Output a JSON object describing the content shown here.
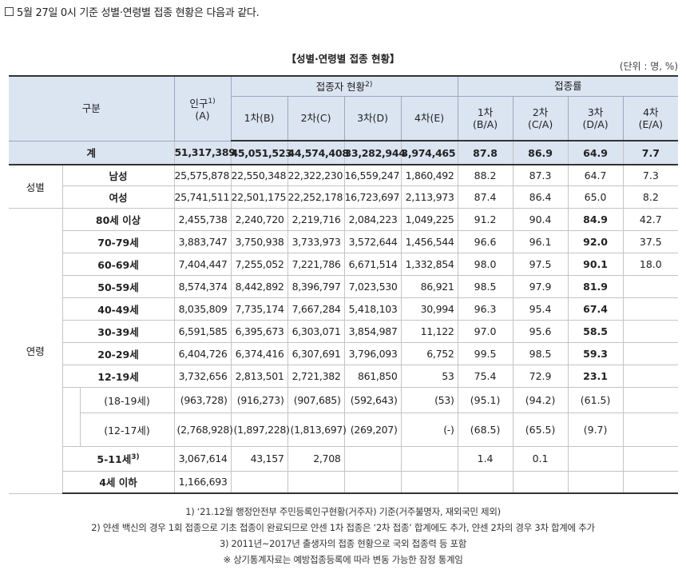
{
  "intro": "5월 27일 0시 기준 성별·연령별 접종 현황은 다음과 같다.",
  "title": "【성별·연령별 접종 현황】",
  "unit": "(단위 : 명, %)",
  "header": {
    "category": "구분",
    "population": "인구",
    "population_sup": "1)",
    "population_sub": "(A)",
    "vaccinated_group": "접종자 현황",
    "vaccinated_group_sup": "2)",
    "rate_group": "접종률",
    "dose1": "1차(B)",
    "dose2": "2차(C)",
    "dose3": "3차(D)",
    "dose4": "4차(E)",
    "rate1": "1차",
    "rate1_sub": "(B/A)",
    "rate2": "2차",
    "rate2_sub": "(C/A)",
    "rate3": "3차",
    "rate3_sub": "(D/A)",
    "rate4": "4차",
    "rate4_sub": "(E/A)"
  },
  "total": {
    "label": "계",
    "pop": "51,317,389",
    "d1": "45,051,523",
    "d2": "44,574,408",
    "d3": "33,282,944",
    "d4": "3,974,465",
    "r1": "87.8",
    "r2": "86.9",
    "r3": "64.9",
    "r4": "7.7"
  },
  "gender": {
    "label": "성별",
    "rows": [
      {
        "label": "남성",
        "pop": "25,575,878",
        "d1": "22,550,348",
        "d2": "22,322,230",
        "d3": "16,559,247",
        "d4": "1,860,492",
        "r1": "88.2",
        "r2": "87.3",
        "r3": "64.7",
        "r4": "7.3"
      },
      {
        "label": "여성",
        "pop": "25,741,511",
        "d1": "22,501,175",
        "d2": "22,252,178",
        "d3": "16,723,697",
        "d4": "2,113,973",
        "r1": "87.4",
        "r2": "86.4",
        "r3": "65.0",
        "r4": "8.2"
      }
    ]
  },
  "age": {
    "label": "연령",
    "rows": [
      {
        "label": "80세 이상",
        "pop": "2,455,738",
        "d1": "2,240,720",
        "d2": "2,219,716",
        "d3": "2,084,223",
        "d4": "1,049,225",
        "r1": "91.2",
        "r2": "90.4",
        "r3": "84.9",
        "r4": "42.7"
      },
      {
        "label": "70-79세",
        "pop": "3,883,747",
        "d1": "3,750,938",
        "d2": "3,733,973",
        "d3": "3,572,644",
        "d4": "1,456,544",
        "r1": "96.6",
        "r2": "96.1",
        "r3": "92.0",
        "r4": "37.5"
      },
      {
        "label": "60-69세",
        "pop": "7,404,447",
        "d1": "7,255,052",
        "d2": "7,221,786",
        "d3": "6,671,514",
        "d4": "1,332,854",
        "r1": "98.0",
        "r2": "97.5",
        "r3": "90.1",
        "r4": "18.0"
      },
      {
        "label": "50-59세",
        "pop": "8,574,374",
        "d1": "8,442,892",
        "d2": "8,396,797",
        "d3": "7,023,530",
        "d4": "86,921",
        "r1": "98.5",
        "r2": "97.9",
        "r3": "81.9",
        "r4": ""
      },
      {
        "label": "40-49세",
        "pop": "8,035,809",
        "d1": "7,735,174",
        "d2": "7,667,284",
        "d3": "5,418,103",
        "d4": "30,994",
        "r1": "96.3",
        "r2": "95.4",
        "r3": "67.4",
        "r4": ""
      },
      {
        "label": "30-39세",
        "pop": "6,591,585",
        "d1": "6,395,673",
        "d2": "6,303,071",
        "d3": "3,854,987",
        "d4": "11,122",
        "r1": "97.0",
        "r2": "95.6",
        "r3": "58.5",
        "r4": ""
      },
      {
        "label": "20-29세",
        "pop": "6,404,726",
        "d1": "6,374,416",
        "d2": "6,307,691",
        "d3": "3,796,093",
        "d4": "6,752",
        "r1": "99.5",
        "r2": "98.5",
        "r3": "59.3",
        "r4": ""
      },
      {
        "label": "12-19세",
        "pop": "3,732,656",
        "d1": "2,813,501",
        "d2": "2,721,382",
        "d3": "861,850",
        "d4": "53",
        "r1": "75.4",
        "r2": "72.9",
        "r3": "23.1",
        "r4": ""
      }
    ],
    "sub": [
      {
        "label": "(18-19세)",
        "pop": "(963,728)",
        "d1": "(916,273)",
        "d2": "(907,685)",
        "d3": "(592,643)",
        "d4": "(53)",
        "r1": "(95.1)",
        "r2": "(94.2)",
        "r3": "(61.5)",
        "r4": ""
      },
      {
        "label": "(12-17세)",
        "pop": "(2,768,928)",
        "d1": "(1,897,228)",
        "d2": "(1,813,697)",
        "d3": "(269,207)",
        "d4": "(-)",
        "r1": "(68.5)",
        "r2": "(65.5)",
        "r3": "(9.7)",
        "r4": ""
      }
    ],
    "kids": {
      "label": "5-11세",
      "label_sup": "3)",
      "pop": "3,067,614",
      "d1": "43,157",
      "d2": "2,708",
      "d3": "",
      "d4": "",
      "r1": "1.4",
      "r2": "0.1",
      "r3": "",
      "r4": ""
    },
    "infant": {
      "label": "4세 이하",
      "pop": "1,166,693"
    }
  },
  "notes": [
    "1) ‘21.12월 행정안전부 주민등록인구현황(거주자) 기준(거주불명자, 재외국민 제외)",
    "2) 얀센 백신의 경우 1회 접종으로 기초 접종이 완료되므로 얀센 1차 접종은 ‘2차 접종’ 합계에도 추가, 얀센 2차의 경우 3차 합계에 추가",
    "3) 2011년~2017년 출생자의 접종 현황으로 국외 접종력 등 포함",
    "※ 상기통계자료는 예방접종등록에 따라 변동 가능한 잠정 통계임"
  ]
}
